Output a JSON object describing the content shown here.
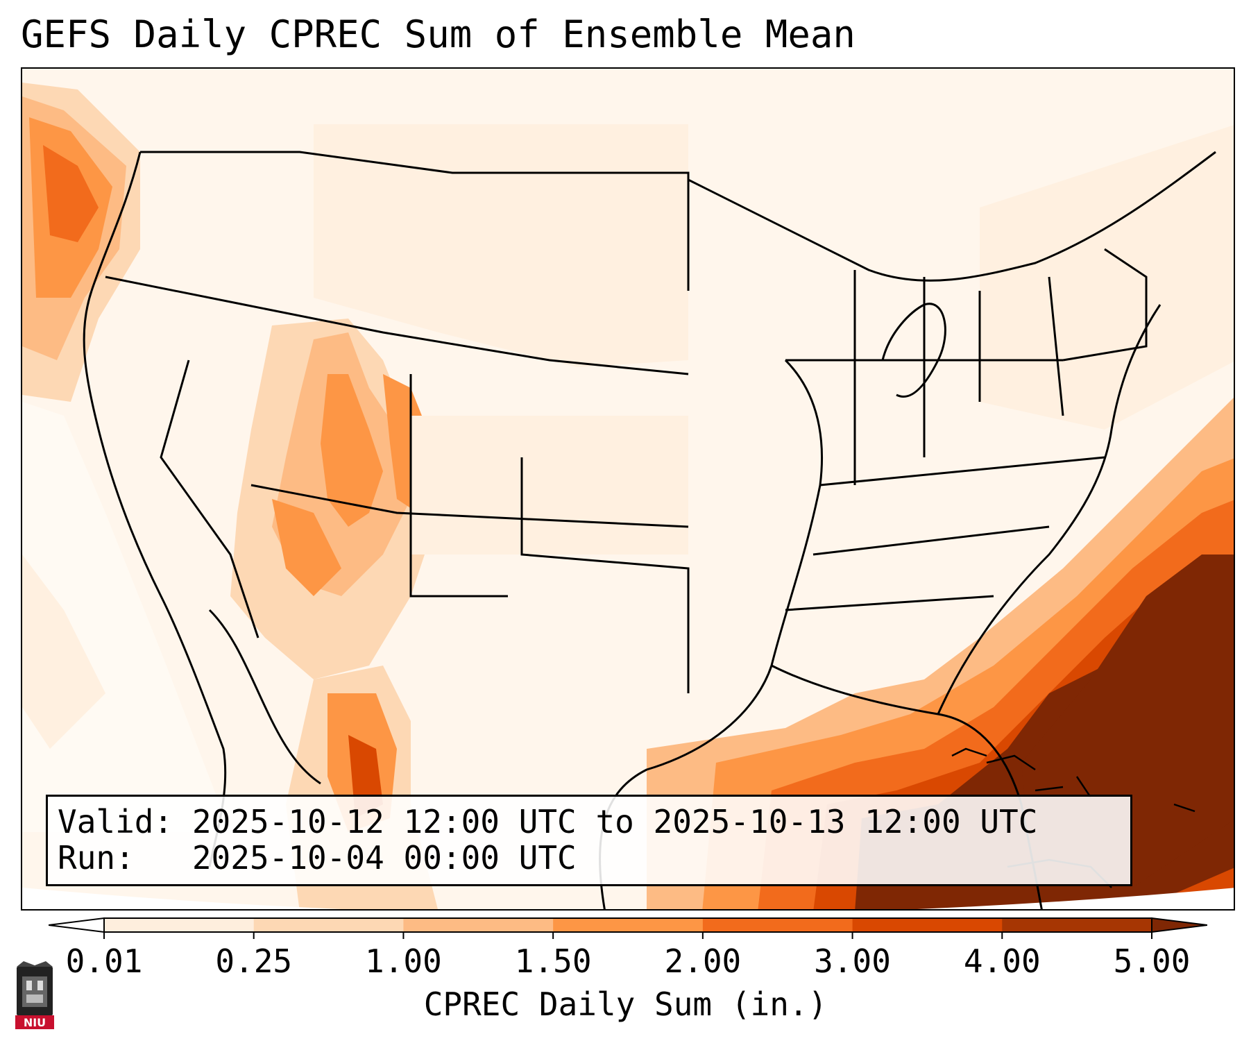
{
  "title": "GEFS Daily CPREC Sum of Ensemble Mean",
  "info": {
    "valid": "Valid: 2025-10-12 12:00 UTC to 2025-10-13 12:00 UTC",
    "run": "Run:   2025-10-04 00:00 UTC"
  },
  "colorbar": {
    "label": "CPREC Daily Sum (in.)",
    "ticks": [
      "0.01",
      "0.25",
      "1.00",
      "1.50",
      "2.00",
      "3.00",
      "4.00",
      "5.00"
    ],
    "colors": [
      "#feeedd",
      "#fdd8b4",
      "#fdbb84",
      "#fd9645",
      "#f26b1c",
      "#d94801",
      "#a63603"
    ],
    "under_color": "#ffffff",
    "over_color": "#7f2704"
  },
  "logo": {
    "text": "NIU"
  }
}
